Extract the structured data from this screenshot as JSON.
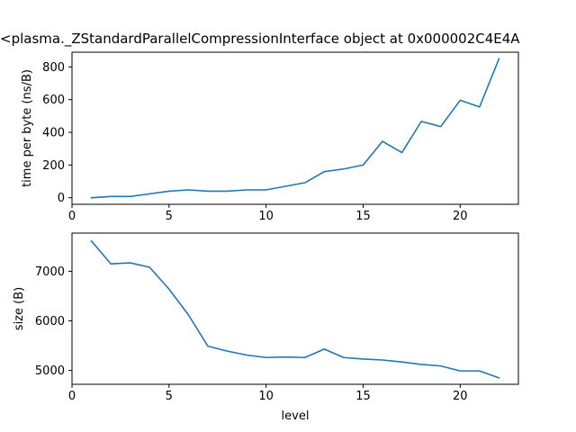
{
  "chart_data": [
    {
      "type": "line",
      "title": "<plasma._ZStandardParallelCompressionInterface object at 0x000002C4E4A",
      "xlabel": "",
      "ylabel": "time per byte (ns/B)",
      "xlim": [
        0,
        23
      ],
      "ylim": [
        -40,
        890
      ],
      "xticks": [
        0,
        5,
        10,
        15,
        20
      ],
      "yticks": [
        0,
        200,
        400,
        600,
        800
      ],
      "grid": false,
      "color": "#1f77b4",
      "x": [
        1,
        2,
        3,
        4,
        5,
        6,
        7,
        8,
        9,
        10,
        11,
        12,
        13,
        14,
        15,
        16,
        17,
        18,
        19,
        20,
        21,
        22
      ],
      "y": [
        0,
        8,
        8,
        24,
        40,
        48,
        40,
        40,
        48,
        48,
        70,
        92,
        160,
        176,
        200,
        345,
        276,
        467,
        435,
        596,
        555,
        850
      ]
    },
    {
      "type": "line",
      "title": "",
      "xlabel": "level",
      "ylabel": "size (B)",
      "xlim": [
        0,
        23
      ],
      "ylim": [
        4720,
        7770
      ],
      "xticks": [
        0,
        5,
        10,
        15,
        20
      ],
      "yticks": [
        5000,
        6000,
        7000
      ],
      "grid": false,
      "color": "#1f77b4",
      "x": [
        1,
        2,
        3,
        4,
        5,
        6,
        7,
        8,
        9,
        10,
        11,
        12,
        13,
        14,
        15,
        16,
        17,
        18,
        19,
        20,
        21,
        22
      ],
      "y": [
        7610,
        7150,
        7170,
        7080,
        6640,
        6120,
        5490,
        5390,
        5310,
        5260,
        5270,
        5260,
        5430,
        5260,
        5230,
        5210,
        5170,
        5120,
        5090,
        4990,
        4990,
        4850
      ]
    }
  ]
}
